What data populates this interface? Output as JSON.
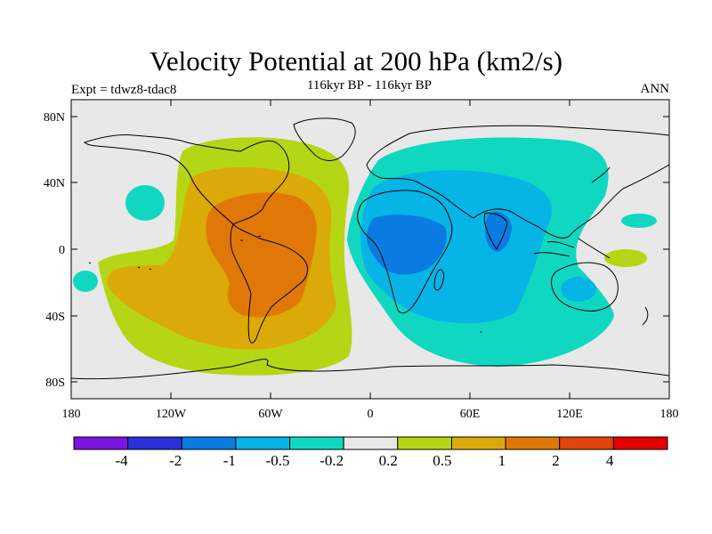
{
  "title": "Velocity Potential at 200 hPa (km2/s)",
  "subtitle": "116kyr BP - 116kyr BP",
  "left_label": "Expt = tdwz8-tdac8",
  "right_label": "ANN",
  "map": {
    "projection": "cylindrical-equidistant",
    "background_color": "#e8e8e8",
    "lon_ticks": [
      "180",
      "120W",
      "60W",
      "0",
      "60E",
      "120E",
      "180"
    ],
    "lat_ticks": [
      "80N",
      "40N",
      "0",
      "40S",
      "80S"
    ]
  },
  "colorbar": {
    "colors": [
      "#7b14e0",
      "#2d2fd8",
      "#0a7be0",
      "#06b4e6",
      "#10d8c0",
      "#e8e8e8",
      "#b5d614",
      "#dcaa08",
      "#e07808",
      "#e04406",
      "#e40000"
    ],
    "labels": [
      "-4",
      "-2",
      "-1",
      "-0.5",
      "-0.2",
      "0.2",
      "0.5",
      "1",
      "2",
      "4"
    ]
  }
}
